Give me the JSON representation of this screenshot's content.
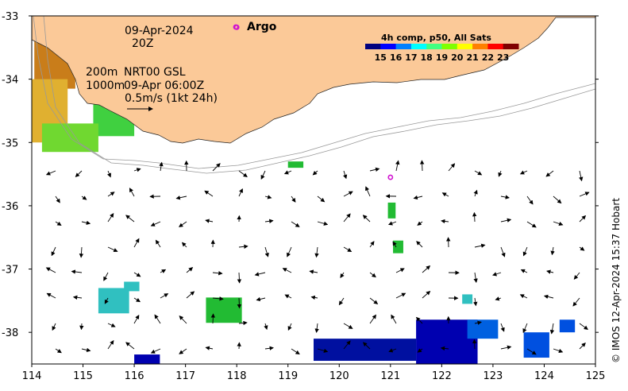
{
  "annotations": {
    "date": "09-Apr-2024",
    "time": "20Z",
    "depth_200": "200m",
    "depth_1000": "1000m",
    "product": "NRT00 GSL",
    "product_time": "09-Apr 06:00Z",
    "scale": "0.5m/s (1kt 24h)"
  },
  "argo": {
    "label": "Argo"
  },
  "legend": {
    "title": "4h comp, p50, All Sats",
    "ticks": [
      "15",
      "16",
      "17",
      "18",
      "19",
      "20",
      "21",
      "22",
      "23"
    ],
    "colors": [
      "#00007f",
      "#0000ff",
      "#0080ff",
      "#00ffff",
      "#40ff80",
      "#80ff00",
      "#ffff00",
      "#ff8000",
      "#ff0000",
      "#800000"
    ]
  },
  "axes": {
    "x_ticks": [
      "114",
      "115",
      "116",
      "117",
      "118",
      "119",
      "120",
      "121",
      "122",
      "123",
      "124",
      "125"
    ],
    "y_ticks": [
      "-33",
      "-34",
      "-35",
      "-36",
      "-37",
      "-38"
    ]
  },
  "credit": "© IMOS 12-Apr-2024 15:37 Hobart",
  "map_data": {
    "lon_range": [
      114,
      125
    ],
    "lat_range": [
      -38.5,
      -33
    ],
    "land_color": "#fbc998",
    "argo_markers": [
      {
        "lon": 118.0,
        "lat": -33.18
      },
      {
        "lon": 121.0,
        "lat": -35.55
      }
    ],
    "sst_patches": [
      {
        "lon": 114.05,
        "lat": -33.05,
        "w": 0.8,
        "h": 1.1,
        "color": "#c97d1a"
      },
      {
        "lon": 114.0,
        "lat": -34.0,
        "w": 0.7,
        "h": 1.0,
        "color": "#e0b030"
      },
      {
        "lon": 115.2,
        "lat": -34.4,
        "w": 0.8,
        "h": 0.5,
        "color": "#40d040"
      },
      {
        "lon": 114.2,
        "lat": -34.7,
        "w": 1.1,
        "h": 0.45,
        "color": "#70d830"
      },
      {
        "lon": 120.95,
        "lat": -35.95,
        "w": 0.15,
        "h": 0.25,
        "color": "#22bb33"
      },
      {
        "lon": 121.05,
        "lat": -36.55,
        "w": 0.2,
        "h": 0.2,
        "color": "#22bb33"
      },
      {
        "lon": 117.4,
        "lat": -37.45,
        "w": 0.7,
        "h": 0.4,
        "color": "#22bb33"
      },
      {
        "lon": 115.3,
        "lat": -37.3,
        "w": 0.6,
        "h": 0.4,
        "color": "#30c0c0"
      },
      {
        "lon": 115.8,
        "lat": -37.2,
        "w": 0.3,
        "h": 0.15,
        "color": "#30c0c0"
      },
      {
        "lon": 122.4,
        "lat": -37.4,
        "w": 0.2,
        "h": 0.15,
        "color": "#30c0c0"
      },
      {
        "lon": 119.0,
        "lat": -35.3,
        "w": 0.3,
        "h": 0.1,
        "color": "#22bb33"
      },
      {
        "lon": 121.5,
        "lat": -37.8,
        "w": 1.2,
        "h": 0.7,
        "color": "#0000b0"
      },
      {
        "lon": 119.5,
        "lat": -38.1,
        "w": 2.0,
        "h": 0.35,
        "color": "#0010a0"
      },
      {
        "lon": 123.6,
        "lat": -38.0,
        "w": 0.5,
        "h": 0.4,
        "color": "#0050e0"
      },
      {
        "lon": 122.5,
        "lat": -37.8,
        "w": 0.6,
        "h": 0.3,
        "color": "#0060e0"
      },
      {
        "lon": 124.3,
        "lat": -37.8,
        "w": 0.3,
        "h": 0.2,
        "color": "#0050e0"
      },
      {
        "lon": 116.0,
        "lat": -38.35,
        "w": 0.5,
        "h": 0.15,
        "color": "#0000b0"
      }
    ]
  }
}
